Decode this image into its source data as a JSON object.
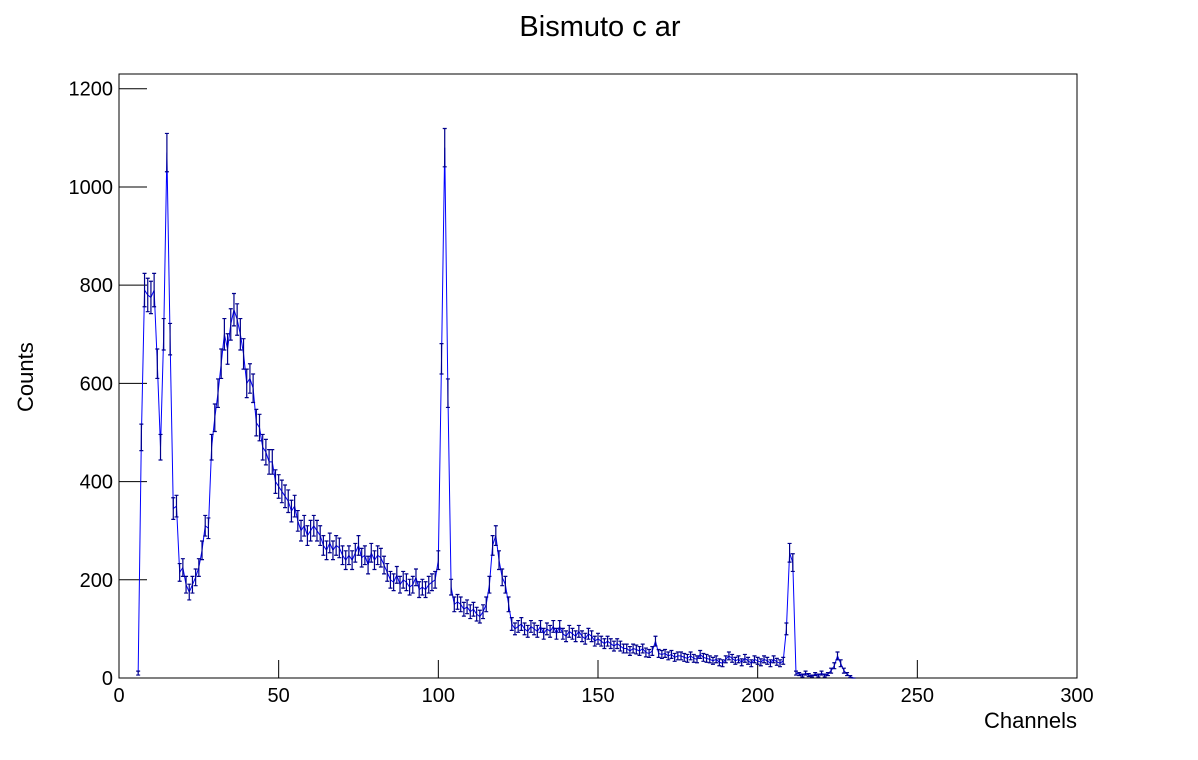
{
  "chart_data": {
    "type": "errorbar",
    "title": "Bismuto c ar",
    "x_label": "Channels",
    "y_label": "Counts",
    "color": "#0000ff",
    "xlim": [
      0,
      300
    ],
    "xticks": [
      0,
      50,
      100,
      150,
      200,
      250,
      300
    ],
    "ylim": [
      0,
      1230
    ],
    "yticks": [
      0,
      200,
      400,
      600,
      800,
      1000,
      1200
    ],
    "x": [
      6,
      7,
      8,
      9,
      10,
      11,
      12,
      13,
      14,
      15,
      16,
      17,
      18,
      19,
      20,
      21,
      22,
      23,
      24,
      25,
      26,
      27,
      28,
      29,
      30,
      31,
      32,
      33,
      34,
      35,
      36,
      37,
      38,
      39,
      40,
      41,
      42,
      43,
      44,
      45,
      46,
      47,
      48,
      49,
      50,
      51,
      52,
      53,
      54,
      55,
      56,
      57,
      58,
      59,
      60,
      61,
      62,
      63,
      64,
      65,
      66,
      67,
      68,
      69,
      70,
      71,
      72,
      73,
      74,
      75,
      76,
      77,
      78,
      79,
      80,
      81,
      82,
      83,
      84,
      85,
      86,
      87,
      88,
      89,
      90,
      91,
      92,
      93,
      94,
      95,
      96,
      97,
      98,
      99,
      100,
      101,
      102,
      103,
      104,
      105,
      106,
      107,
      108,
      109,
      110,
      111,
      112,
      113,
      114,
      115,
      116,
      117,
      118,
      119,
      120,
      121,
      122,
      123,
      124,
      125,
      126,
      127,
      128,
      129,
      130,
      131,
      132,
      133,
      134,
      135,
      136,
      137,
      138,
      139,
      140,
      141,
      142,
      143,
      144,
      145,
      146,
      147,
      148,
      149,
      150,
      151,
      152,
      153,
      154,
      155,
      156,
      157,
      158,
      159,
      160,
      161,
      162,
      163,
      164,
      165,
      166,
      167,
      168,
      169,
      170,
      171,
      172,
      173,
      174,
      175,
      176,
      177,
      178,
      179,
      180,
      181,
      182,
      183,
      184,
      185,
      186,
      187,
      188,
      189,
      190,
      191,
      192,
      193,
      194,
      195,
      196,
      197,
      198,
      199,
      200,
      201,
      202,
      203,
      204,
      205,
      206,
      207,
      208,
      209,
      210,
      211,
      212,
      213,
      214,
      215,
      216,
      217,
      218,
      219,
      220,
      221,
      222,
      223,
      224,
      225,
      226,
      227,
      228,
      229,
      230
    ],
    "values": [
      10,
      490,
      790,
      780,
      775,
      790,
      640,
      470,
      700,
      1070,
      690,
      345,
      350,
      215,
      225,
      190,
      175,
      190,
      205,
      225,
      260,
      310,
      305,
      470,
      530,
      580,
      640,
      700,
      670,
      720,
      750,
      730,
      700,
      660,
      600,
      610,
      590,
      520,
      510,
      470,
      460,
      440,
      440,
      400,
      390,
      380,
      370,
      360,
      340,
      350,
      320,
      300,
      310,
      290,
      300,
      310,
      300,
      290,
      270,
      260,
      275,
      260,
      270,
      265,
      250,
      240,
      250,
      240,
      255,
      270,
      245,
      250,
      230,
      255,
      240,
      250,
      245,
      230,
      215,
      200,
      195,
      210,
      190,
      200,
      195,
      185,
      190,
      205,
      180,
      185,
      180,
      190,
      195,
      200,
      240,
      650,
      1080,
      580,
      185,
      150,
      155,
      150,
      140,
      145,
      135,
      140,
      130,
      125,
      135,
      150,
      190,
      270,
      290,
      240,
      205,
      190,
      150,
      110,
      100,
      105,
      110,
      100,
      95,
      105,
      100,
      95,
      105,
      90,
      100,
      95,
      105,
      90,
      105,
      90,
      85,
      95,
      90,
      85,
      95,
      85,
      80,
      90,
      85,
      75,
      80,
      75,
      70,
      75,
      70,
      65,
      70,
      65,
      60,
      60,
      55,
      60,
      58,
      55,
      60,
      52,
      50,
      55,
      75,
      50,
      48,
      50,
      45,
      48,
      42,
      45,
      45,
      42,
      40,
      45,
      40,
      38,
      48,
      42,
      40,
      38,
      35,
      38,
      32,
      30,
      38,
      45,
      40,
      35,
      38,
      32,
      40,
      35,
      30,
      38,
      35,
      32,
      38,
      35,
      30,
      38,
      33,
      30,
      35,
      100,
      255,
      235,
      10,
      8,
      5,
      10,
      6,
      4,
      8,
      5,
      10,
      5,
      8,
      15,
      25,
      45,
      30,
      15,
      8,
      3,
      0
    ],
    "errors": [
      4,
      27,
      34,
      34,
      33,
      34,
      30,
      26,
      32,
      39,
      32,
      22,
      22,
      18,
      18,
      17,
      16,
      17,
      17,
      18,
      19,
      21,
      21,
      26,
      28,
      29,
      30,
      32,
      31,
      32,
      33,
      32,
      32,
      31,
      29,
      30,
      29,
      27,
      27,
      26,
      26,
      25,
      25,
      24,
      24,
      23,
      23,
      23,
      22,
      22,
      21,
      21,
      21,
      20,
      21,
      21,
      21,
      20,
      20,
      19,
      20,
      19,
      20,
      20,
      19,
      19,
      19,
      19,
      19,
      20,
      19,
      19,
      18,
      19,
      19,
      19,
      19,
      18,
      18,
      17,
      17,
      17,
      17,
      17,
      17,
      16,
      17,
      17,
      16,
      16,
      16,
      17,
      17,
      17,
      19,
      31,
      39,
      29,
      16,
      15,
      15,
      15,
      14,
      14,
      14,
      14,
      14,
      13,
      14,
      15,
      17,
      20,
      20,
      19,
      17,
      17,
      15,
      13,
      12,
      12,
      13,
      12,
      12,
      12,
      12,
      12,
      12,
      11,
      12,
      12,
      12,
      11,
      12,
      11,
      11,
      12,
      11,
      11,
      12,
      11,
      11,
      11,
      11,
      10,
      11,
      10,
      10,
      10,
      10,
      10,
      10,
      10,
      9,
      9,
      9,
      9,
      9,
      9,
      9,
      9,
      8,
      9,
      10,
      8,
      8,
      8,
      8,
      8,
      8,
      8,
      8,
      8,
      8,
      8,
      8,
      7,
      8,
      8,
      8,
      7,
      7,
      7,
      7,
      7,
      7,
      8,
      8,
      7,
      7,
      7,
      8,
      7,
      7,
      7,
      7,
      7,
      7,
      7,
      7,
      7,
      7,
      7,
      7,
      12,
      19,
      18,
      4,
      3,
      3,
      4,
      3,
      2,
      3,
      3,
      4,
      3,
      3,
      5,
      6,
      8,
      7,
      5,
      3,
      2,
      0
    ]
  }
}
